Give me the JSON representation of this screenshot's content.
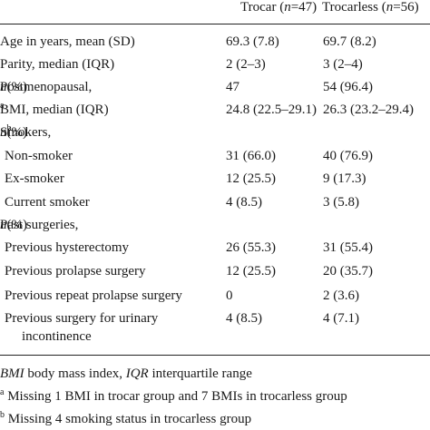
{
  "header": {
    "col1_name": "Trocar",
    "col1_n": "n",
    "col1_eq": "=47)",
    "col2_name": "Trocarless",
    "col2_n": "n",
    "col2_eq": "=56)"
  },
  "rows": [
    {
      "label": "Age in years, mean (SD)",
      "trocar": "69.3 (7.8)",
      "trocarless": "69.7 (8.2)"
    },
    {
      "label": "Parity, median (IQR)",
      "trocar": "2 (2–3)",
      "trocarless": "3 (2–4)"
    },
    {
      "label": "Postmenopausal, ",
      "label_italic": "n",
      "label_tail": " (%)",
      "trocar": "47",
      "trocarless": "54 (96.4)"
    },
    {
      "label": "BMI, median (IQR)",
      "label_sup": "a",
      "trocar": "24.8 (22.5–29.1)",
      "trocarless": "26.3 (23.2–29.4)"
    },
    {
      "label": "Smokers, ",
      "label_italic": "n",
      "label_tail": " (%)",
      "label_sup": "b",
      "trocar": "",
      "trocarless": ""
    },
    {
      "label": "Non-smoker",
      "trocar": "31 (66.0)",
      "trocarless": "40 (76.9)"
    },
    {
      "label": "Ex-smoker",
      "trocar": "12 (25.5)",
      "trocarless": "9 (17.3)"
    },
    {
      "label": "Current smoker",
      "trocar": "4 (8.5)",
      "trocarless": "3 (5.8)"
    },
    {
      "label": "Past surgeries, ",
      "label_italic": "n",
      "label_tail": " (%)",
      "trocar": "",
      "trocarless": ""
    },
    {
      "label": "Previous hysterectomy",
      "trocar": "26 (55.3)",
      "trocarless": "31 (55.4)"
    },
    {
      "label": "Previous prolapse surgery",
      "trocar": "12 (25.5)",
      "trocarless": "20 (35.7)"
    },
    {
      "label": "Previous repeat prolapse surgery",
      "trocar": "0",
      "trocarless": "2 (3.6)"
    },
    {
      "label": "Previous surgery for urinary",
      "label_line2": "incontinence",
      "trocar": "4 (8.5)",
      "trocarless": "4 (7.1)"
    }
  ],
  "footnotes": {
    "abbr_bmi": "BMI",
    "abbr_bmi_text": " body mass index, ",
    "abbr_iqr": "IQR",
    "abbr_iqr_text": " interquartile range",
    "fn_a_mark": "a",
    "fn_a_text": " Missing 1 BMI in trocar group and 7 BMIs in trocarless group",
    "fn_b_mark": "b",
    "fn_b_text": " Missing 4 smoking status in trocarless group"
  }
}
